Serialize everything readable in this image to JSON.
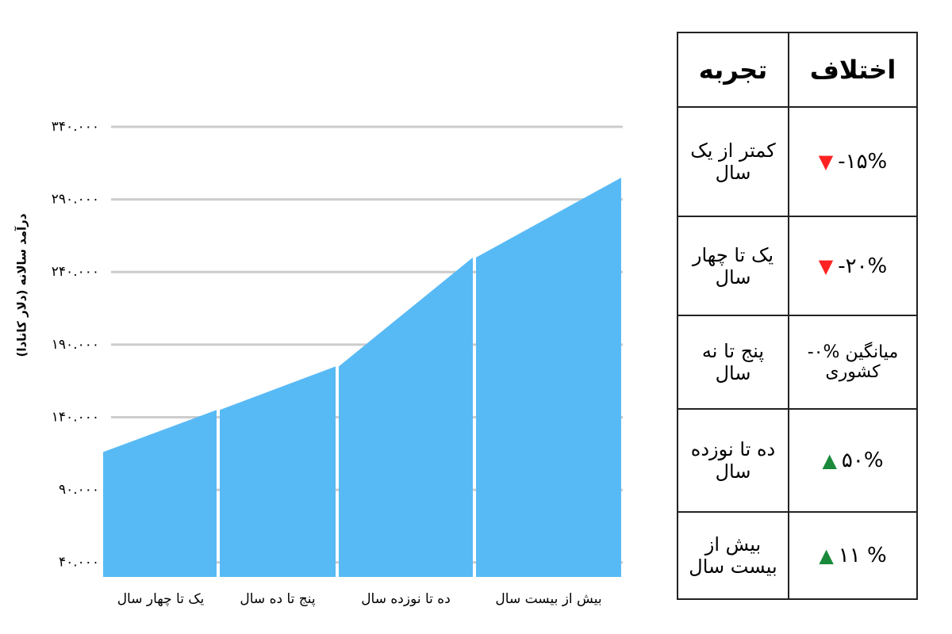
{
  "chart_data": {
    "type": "area",
    "y_label": "درآمد سالانه (دلار کانادا)",
    "categories": [
      "یک تا چهار سال",
      "پنج تا ده سال",
      "ده تا نوزده سال",
      "بیش از بیست سال"
    ],
    "values": [
      [
        116000,
        145000
      ],
      [
        145000,
        175000
      ],
      [
        175000,
        250000
      ],
      [
        250000,
        305000
      ]
    ],
    "color": "#58baf5",
    "grid": true,
    "ylim": [
      30000,
      340000
    ],
    "yticks": [
      {
        "value": 40000,
        "label": "۴۰.۰۰۰"
      },
      {
        "value": 90000,
        "label": "۹۰.۰۰۰"
      },
      {
        "value": 140000,
        "label": "۱۴۰.۰۰۰"
      },
      {
        "value": 190000,
        "label": "۱۹۰.۰۰۰"
      },
      {
        "value": 240000,
        "label": "۲۴۰.۰۰۰"
      },
      {
        "value": 290000,
        "label": "۲۹۰.۰۰۰"
      },
      {
        "value": 340000,
        "label": "۳۴۰.۰۰۰"
      }
    ]
  },
  "table": {
    "headers": [
      "تجربه",
      "اختلاف"
    ],
    "rows": [
      {
        "experience": "کمتر از یک سال",
        "diff": "-۱۵%",
        "trend": "down"
      },
      {
        "experience": "یک تا چهار سال",
        "diff": "-۲۰%",
        "trend": "down"
      },
      {
        "experience": "پنج تا نه سال",
        "diff": "میانگین %۰- کشوری"
      },
      {
        "experience": "ده تا نوزده سال",
        "diff": "۵۰%",
        "trend": "up"
      },
      {
        "experience": "بیش از بیست سال",
        "diff": "۱۱ %",
        "trend": "up"
      }
    ]
  }
}
